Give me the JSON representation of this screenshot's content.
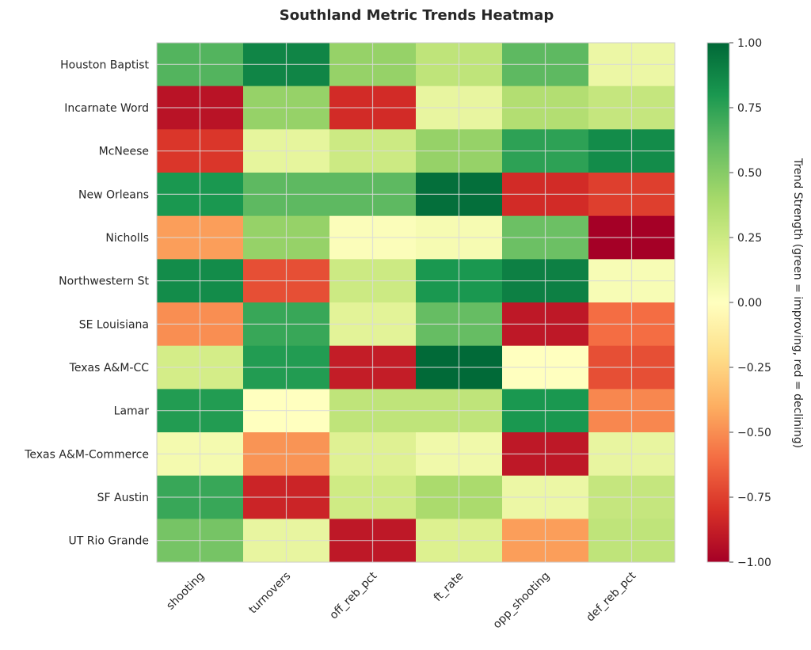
{
  "chart_data": {
    "type": "heatmap",
    "title": "Southland Metric Trends Heatmap",
    "rows": [
      "Houston Baptist",
      "Incarnate Word",
      "McNeese",
      "New Orleans",
      "Nicholls",
      "Northwestern St",
      "SE Louisiana",
      "Texas A&M-CC",
      "Lamar",
      "Texas A&M-Commerce",
      "SF Austin",
      "UT Rio Grande"
    ],
    "columns": [
      "shooting",
      "turnovers",
      "off_reb_pct",
      "ft_rate",
      "opp_shooting",
      "def_reb_pct"
    ],
    "values": [
      [
        0.65,
        0.88,
        0.45,
        0.3,
        0.62,
        0.1
      ],
      [
        -0.92,
        0.45,
        -0.82,
        0.12,
        0.35,
        0.28
      ],
      [
        -0.78,
        0.13,
        0.25,
        0.45,
        0.75,
        0.85
      ],
      [
        0.8,
        0.62,
        0.62,
        0.97,
        -0.82,
        -0.75
      ],
      [
        -0.45,
        0.45,
        0.02,
        0.05,
        0.58,
        -1.0
      ],
      [
        0.85,
        -0.7,
        0.25,
        0.8,
        0.9,
        0.04
      ],
      [
        -0.5,
        0.72,
        0.15,
        0.6,
        -0.9,
        -0.6
      ],
      [
        0.22,
        0.78,
        -0.88,
        0.99,
        0.0,
        -0.7
      ],
      [
        0.78,
        0.0,
        0.3,
        0.3,
        0.8,
        -0.52
      ],
      [
        0.06,
        -0.48,
        0.17,
        0.08,
        -0.9,
        0.12
      ],
      [
        0.72,
        -0.85,
        0.24,
        0.38,
        0.1,
        0.28
      ],
      [
        0.55,
        0.12,
        -0.9,
        0.18,
        -0.45,
        0.3
      ]
    ],
    "vmin": -1.0,
    "vmax": 1.0,
    "colormap": "RdYlGn",
    "colorbar": {
      "label": "Trend Strength (green = improving, red = declining)",
      "ticks": [
        "1.00",
        "0.75",
        "0.50",
        "0.25",
        "0.00",
        "−0.25",
        "−0.50",
        "−0.75",
        "−1.00"
      ],
      "tick_values": [
        1.0,
        0.75,
        0.5,
        0.25,
        0.0,
        -0.25,
        -0.5,
        -0.75,
        -1.0
      ]
    }
  }
}
